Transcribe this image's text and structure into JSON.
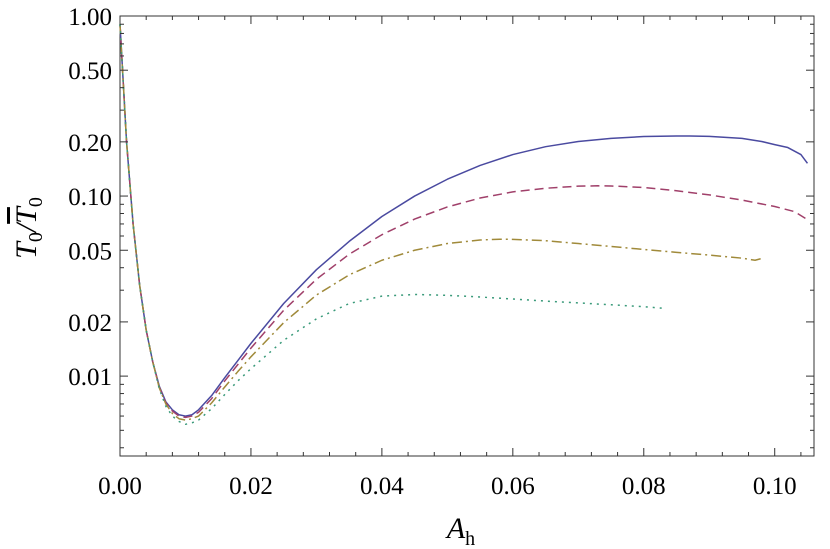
{
  "chart_data": {
    "type": "line",
    "xlabel": "A",
    "xlabel_sub": "h",
    "ylabel": "T",
    "ylabel_sub": "0",
    "y_scale": "log",
    "xlim": [
      0.0,
      0.106
    ],
    "ylim": [
      0.0036,
      1.0
    ],
    "x_ticks": [
      {
        "value": 0.0,
        "label": "0.00"
      },
      {
        "value": 0.02,
        "label": "0.02"
      },
      {
        "value": 0.04,
        "label": "0.04"
      },
      {
        "value": 0.06,
        "label": "0.06"
      },
      {
        "value": 0.08,
        "label": "0.08"
      },
      {
        "value": 0.1,
        "label": "0.10"
      }
    ],
    "y_ticks": [
      {
        "value": 1.0,
        "label": "1.00"
      },
      {
        "value": 0.5,
        "label": "0.50"
      },
      {
        "value": 0.2,
        "label": "0.20"
      },
      {
        "value": 0.1,
        "label": "0.10"
      },
      {
        "value": 0.05,
        "label": "0.05"
      },
      {
        "value": 0.02,
        "label": "0.02"
      },
      {
        "value": 0.01,
        "label": "0.01"
      }
    ],
    "grid": false,
    "legend": "none",
    "series": [
      {
        "style": "solid",
        "color": "#4a4aa0",
        "x": [
          0.0,
          0.001,
          0.002,
          0.003,
          0.004,
          0.005,
          0.006,
          0.007,
          0.008,
          0.009,
          0.01,
          0.011,
          0.012,
          0.014,
          0.016,
          0.018,
          0.02,
          0.025,
          0.03,
          0.035,
          0.04,
          0.045,
          0.05,
          0.055,
          0.06,
          0.065,
          0.07,
          0.075,
          0.08,
          0.085,
          0.087,
          0.09,
          0.095,
          0.098,
          0.1,
          0.102,
          0.104,
          0.105
        ],
        "y": [
          0.9,
          0.2,
          0.07,
          0.032,
          0.018,
          0.012,
          0.0088,
          0.0072,
          0.0065,
          0.0061,
          0.006,
          0.0061,
          0.0065,
          0.0078,
          0.0098,
          0.0122,
          0.0152,
          0.0253,
          0.039,
          0.056,
          0.077,
          0.1,
          0.124,
          0.148,
          0.17,
          0.188,
          0.201,
          0.209,
          0.214,
          0.2155,
          0.2155,
          0.2145,
          0.209,
          0.201,
          0.193,
          0.186,
          0.17,
          0.152
        ]
      },
      {
        "style": "dashed",
        "color": "#a0406a",
        "x": [
          0.0,
          0.001,
          0.002,
          0.003,
          0.004,
          0.005,
          0.006,
          0.007,
          0.008,
          0.009,
          0.01,
          0.011,
          0.012,
          0.014,
          0.016,
          0.018,
          0.02,
          0.025,
          0.03,
          0.035,
          0.04,
          0.045,
          0.05,
          0.055,
          0.06,
          0.065,
          0.07,
          0.073,
          0.075,
          0.08,
          0.085,
          0.09,
          0.095,
          0.1,
          0.103,
          0.105
        ],
        "y": [
          0.9,
          0.2,
          0.07,
          0.032,
          0.018,
          0.012,
          0.0087,
          0.0071,
          0.0064,
          0.006,
          0.0059,
          0.006,
          0.0063,
          0.0075,
          0.0094,
          0.0116,
          0.0143,
          0.0232,
          0.0345,
          0.0475,
          0.061,
          0.0745,
          0.087,
          0.0975,
          0.1055,
          0.1105,
          0.1135,
          0.114,
          0.1138,
          0.1115,
          0.107,
          0.1015,
          0.095,
          0.0875,
          0.082,
          0.074
        ]
      },
      {
        "style": "dashdot",
        "color": "#a08a3a",
        "x": [
          0.0,
          0.001,
          0.002,
          0.003,
          0.004,
          0.005,
          0.006,
          0.007,
          0.008,
          0.009,
          0.01,
          0.011,
          0.012,
          0.014,
          0.016,
          0.018,
          0.02,
          0.025,
          0.03,
          0.035,
          0.04,
          0.045,
          0.05,
          0.055,
          0.058,
          0.06,
          0.065,
          0.07,
          0.075,
          0.08,
          0.085,
          0.09,
          0.095,
          0.097,
          0.098
        ],
        "y": [
          0.9,
          0.2,
          0.07,
          0.032,
          0.018,
          0.012,
          0.0086,
          0.007,
          0.0062,
          0.0058,
          0.0057,
          0.0058,
          0.006,
          0.0071,
          0.0087,
          0.0106,
          0.0128,
          0.0198,
          0.0282,
          0.0365,
          0.044,
          0.05,
          0.0545,
          0.057,
          0.0576,
          0.0575,
          0.0565,
          0.0545,
          0.0525,
          0.0505,
          0.0487,
          0.047,
          0.0452,
          0.044,
          0.045
        ]
      },
      {
        "style": "dotted",
        "color": "#3a9a7a",
        "x": [
          0.0,
          0.001,
          0.002,
          0.003,
          0.004,
          0.005,
          0.006,
          0.007,
          0.008,
          0.009,
          0.01,
          0.011,
          0.012,
          0.014,
          0.016,
          0.018,
          0.02,
          0.025,
          0.03,
          0.035,
          0.04,
          0.045,
          0.05,
          0.055,
          0.06,
          0.065,
          0.07,
          0.075,
          0.08,
          0.083
        ],
        "y": [
          0.9,
          0.2,
          0.07,
          0.032,
          0.018,
          0.012,
          0.0085,
          0.0068,
          0.006,
          0.0056,
          0.0054,
          0.0055,
          0.0057,
          0.0066,
          0.0079,
          0.0094,
          0.011,
          0.0158,
          0.0208,
          0.0253,
          0.0278,
          0.0284,
          0.0281,
          0.0275,
          0.0268,
          0.0261,
          0.0255,
          0.0249,
          0.0243,
          0.0238
        ]
      }
    ]
  }
}
